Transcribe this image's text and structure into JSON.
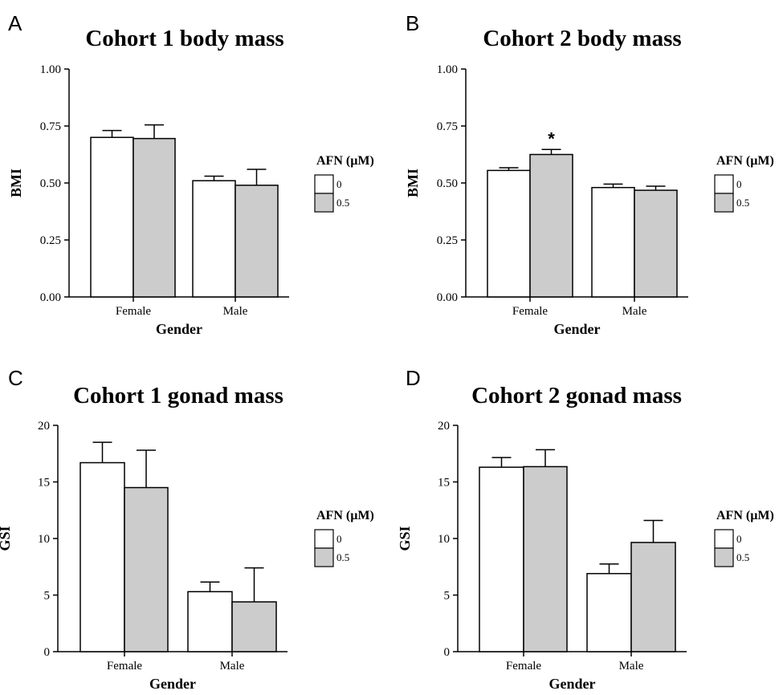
{
  "chart_data": [
    {
      "type": "bar",
      "panel": "A",
      "title": "Cohort 1 body mass",
      "xlabel": "Gender",
      "ylabel": "BMI",
      "ylim": [
        0,
        1.0
      ],
      "yticks": [
        "0.00",
        "0.25",
        "0.50",
        "0.75",
        "1.00"
      ],
      "ytick_values": [
        0,
        0.25,
        0.5,
        0.75,
        1.0
      ],
      "categories": [
        "Female",
        "Male"
      ],
      "legend_title": "AFN (µM)",
      "series": [
        {
          "name": "0",
          "values": [
            0.7,
            0.51
          ],
          "errors": [
            0.03,
            0.02
          ],
          "color": "#ffffff"
        },
        {
          "name": "0.5",
          "values": [
            0.695,
            0.49
          ],
          "errors": [
            0.06,
            0.07
          ],
          "color": "#cccccc"
        }
      ],
      "annotations": []
    },
    {
      "type": "bar",
      "panel": "B",
      "title": "Cohort 2 body mass",
      "xlabel": "Gender",
      "ylabel": "BMI",
      "ylim": [
        0,
        1.0
      ],
      "yticks": [
        "0.00",
        "0.25",
        "0.50",
        "0.75",
        "1.00"
      ],
      "ytick_values": [
        0,
        0.25,
        0.5,
        0.75,
        1.0
      ],
      "categories": [
        "Female",
        "Male"
      ],
      "legend_title": "AFN (µM)",
      "series": [
        {
          "name": "0",
          "values": [
            0.555,
            0.48
          ],
          "errors": [
            0.012,
            0.015
          ],
          "color": "#ffffff"
        },
        {
          "name": "0.5",
          "values": [
            0.625,
            0.468
          ],
          "errors": [
            0.022,
            0.018
          ],
          "color": "#cccccc"
        }
      ],
      "annotations": [
        {
          "text": "*",
          "category": 0,
          "series": 1
        }
      ]
    },
    {
      "type": "bar",
      "panel": "C",
      "title": "Cohort 1 gonad mass",
      "xlabel": "Gender",
      "ylabel": "GSI",
      "ylim": [
        0,
        20
      ],
      "yticks": [
        "0",
        "5",
        "10",
        "15",
        "20"
      ],
      "ytick_values": [
        0,
        5,
        10,
        15,
        20
      ],
      "categories": [
        "Female",
        "Male"
      ],
      "legend_title": "AFN (µM)",
      "series": [
        {
          "name": "0",
          "values": [
            16.7,
            5.3
          ],
          "errors": [
            1.8,
            0.85
          ],
          "color": "#ffffff"
        },
        {
          "name": "0.5",
          "values": [
            14.5,
            4.4
          ],
          "errors": [
            3.3,
            3.0
          ],
          "color": "#cccccc"
        }
      ],
      "annotations": []
    },
    {
      "type": "bar",
      "panel": "D",
      "title": "Cohort 2 gonad mass",
      "xlabel": "Gender",
      "ylabel": "GSI",
      "ylim": [
        0,
        20
      ],
      "yticks": [
        "0",
        "5",
        "10",
        "15",
        "20"
      ],
      "ytick_values": [
        0,
        5,
        10,
        15,
        20
      ],
      "categories": [
        "Female",
        "Male"
      ],
      "legend_title": "AFN (µM)",
      "series": [
        {
          "name": "0",
          "values": [
            16.3,
            6.9
          ],
          "errors": [
            0.85,
            0.85
          ],
          "color": "#ffffff"
        },
        {
          "name": "0.5",
          "values": [
            16.35,
            9.65
          ],
          "errors": [
            1.5,
            1.95
          ],
          "color": "#cccccc"
        }
      ],
      "annotations": []
    }
  ]
}
